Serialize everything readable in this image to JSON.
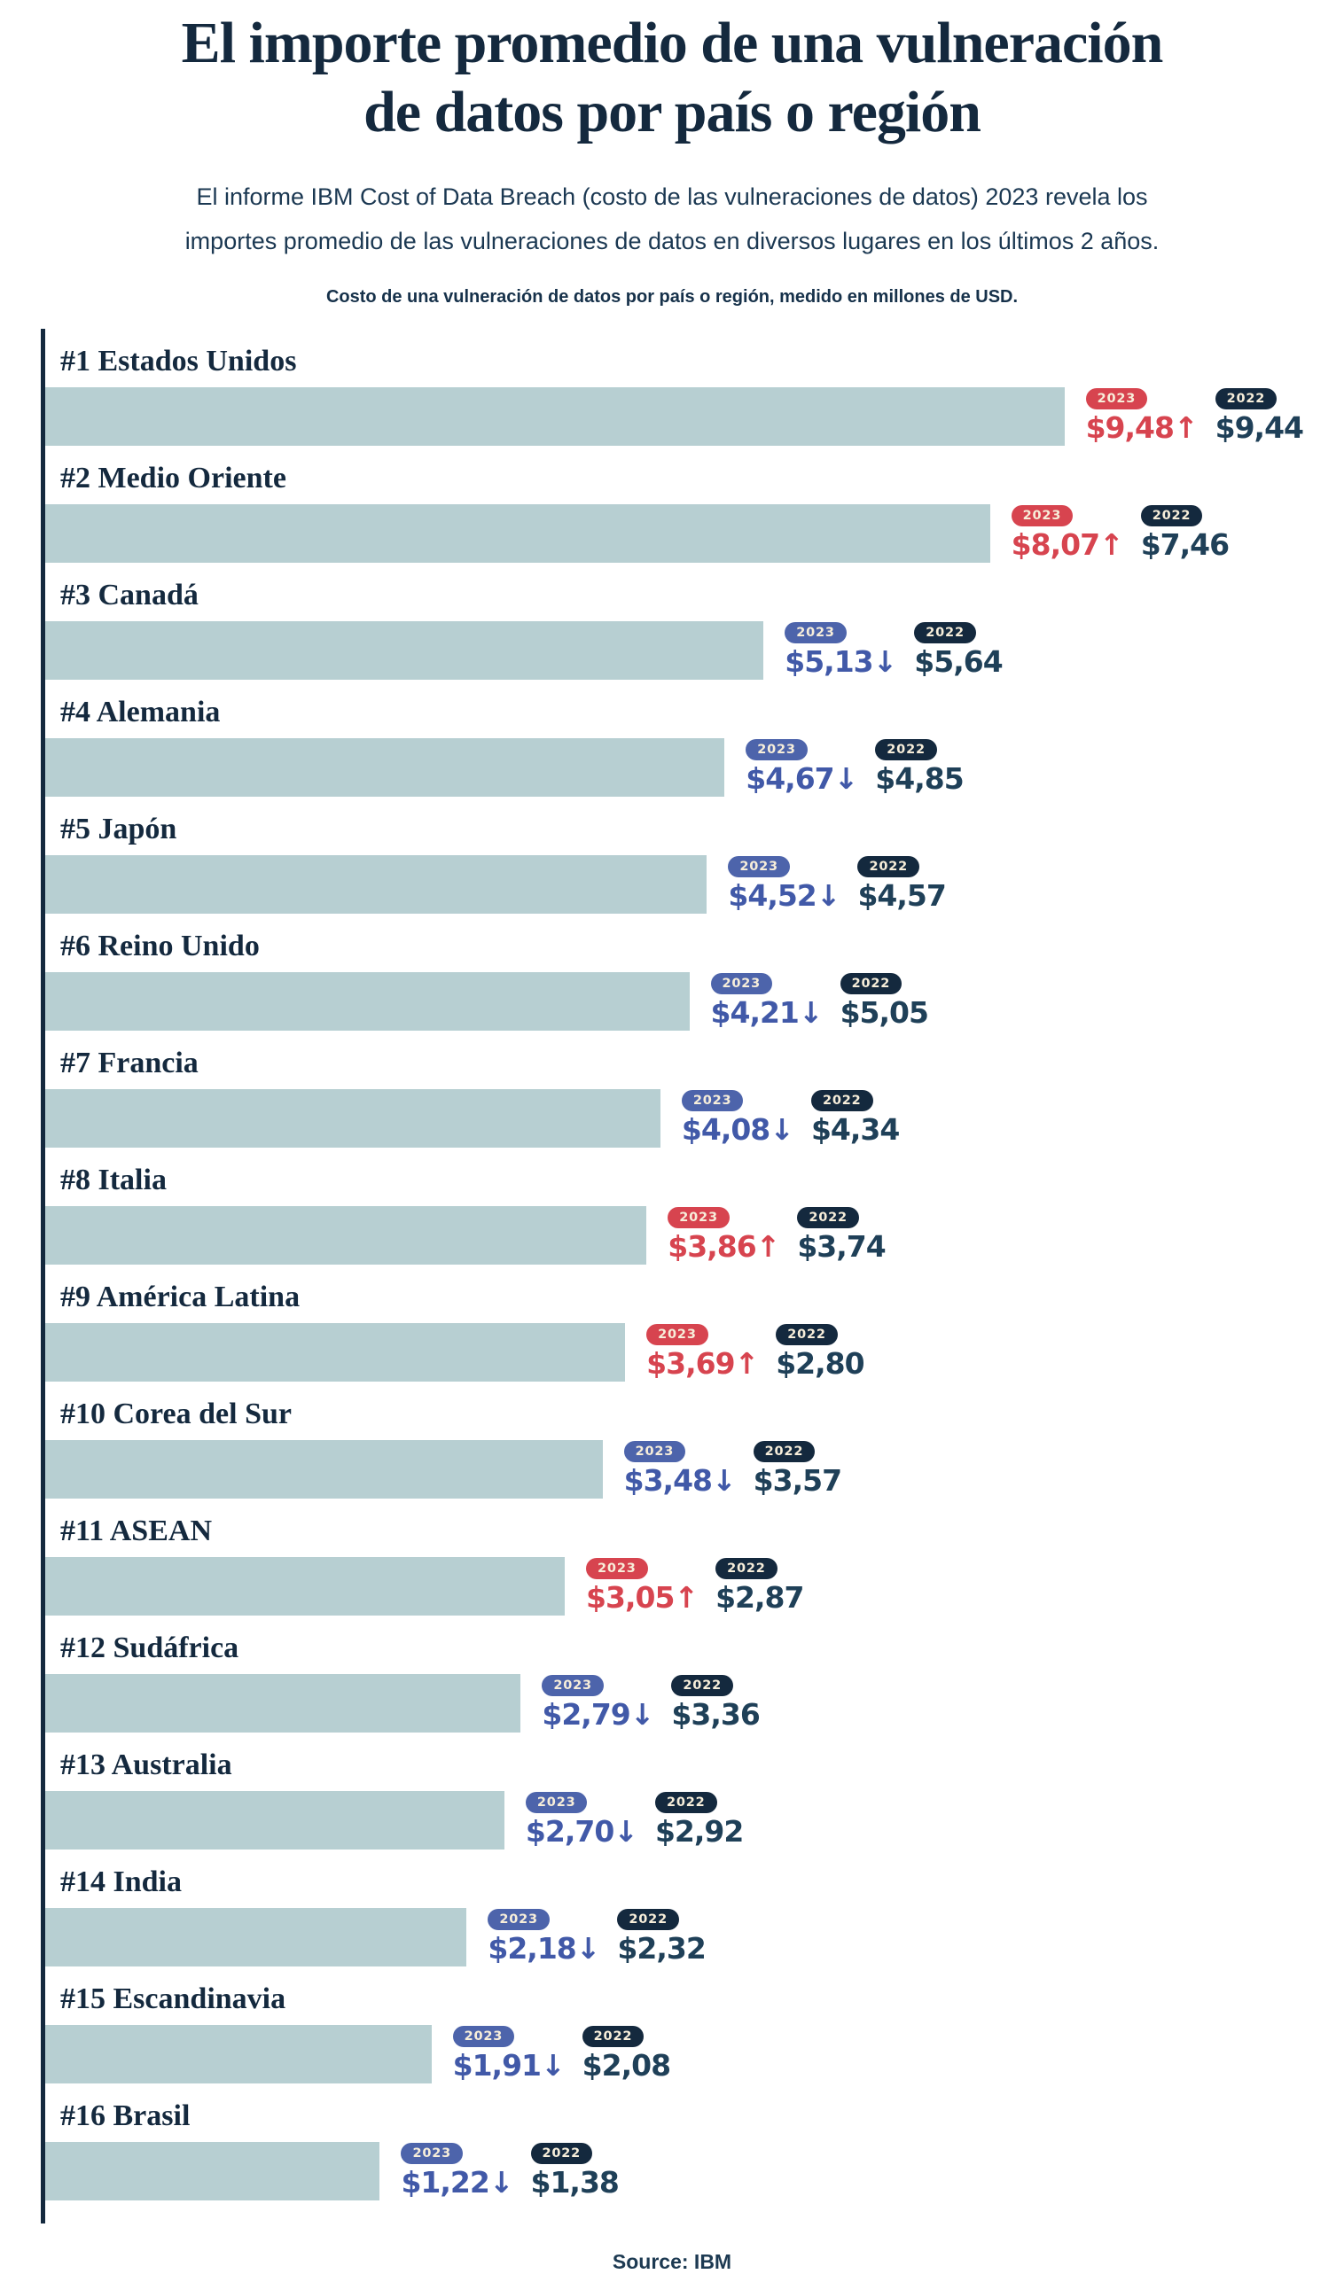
{
  "page": {
    "title_line1": "El importe promedio de una vulneración",
    "title_line2": "de datos por país o región",
    "subtitle_line1": "El informe IBM Cost of Data Breach (costo de las vulneraciones de datos) 2023 revela los",
    "subtitle_line2": "importes promedio de las vulneraciones de datos en diversos lugares en los últimos 2 años.",
    "caption": "Costo de una vulneración de datos por país o región, medido en millones de USD.",
    "source": "Source: IBM"
  },
  "colors": {
    "background": "#ffffff",
    "navy": "#14293e",
    "navy_value": "#1f4058",
    "red_accent": "#d7444f",
    "blue_accent": "#4d64ab",
    "bar_fill": "#b7cfd2",
    "badge_text": "#f7eeda"
  },
  "chart_data": {
    "type": "bar",
    "orientation": "horizontal",
    "title": "Costo de una vulneración de datos por país o región",
    "unit": "millones de USD",
    "legend": [
      "2023",
      "2022"
    ],
    "legend_position": "right-of-bars",
    "grid": false,
    "axis": "single vertical baseline at left",
    "rows": [
      {
        "rank": 1,
        "label": "#1 Estados Unidos",
        "value_2023": "$9,48",
        "value_2022": "$9,44",
        "numeric_2023": 9.48,
        "numeric_2022": 9.44,
        "trend": "up",
        "bar_pct": 85.1
      },
      {
        "rank": 2,
        "label": "#2 Medio Oriente",
        "value_2023": "$8,07",
        "value_2022": "$7,46",
        "numeric_2023": 8.07,
        "numeric_2022": 7.46,
        "trend": "up",
        "bar_pct": 75.1
      },
      {
        "rank": 3,
        "label": "#3 Canadá",
        "value_2023": "$5,13",
        "value_2022": "$5,64",
        "numeric_2023": 5.13,
        "numeric_2022": 5.64,
        "trend": "down",
        "bar_pct": 57.1
      },
      {
        "rank": 4,
        "label": "#4 Alemania",
        "value_2023": "$4,67",
        "value_2022": "$4,85",
        "numeric_2023": 4.67,
        "numeric_2022": 4.85,
        "trend": "down",
        "bar_pct": 54.0
      },
      {
        "rank": 5,
        "label": "#5 Japón",
        "value_2023": "$4,52",
        "value_2022": "$4,57",
        "numeric_2023": 4.52,
        "numeric_2022": 4.57,
        "trend": "down",
        "bar_pct": 52.6
      },
      {
        "rank": 6,
        "label": "#6 Reino Unido",
        "value_2023": "$4,21",
        "value_2022": "$5,05",
        "numeric_2023": 4.21,
        "numeric_2022": 5.05,
        "trend": "down",
        "bar_pct": 51.2
      },
      {
        "rank": 7,
        "label": "#7 Francia",
        "value_2023": "$4,08",
        "value_2022": "$4,34",
        "numeric_2023": 4.08,
        "numeric_2022": 4.34,
        "trend": "down",
        "bar_pct": 48.9
      },
      {
        "rank": 8,
        "label": "#8 Italia",
        "value_2023": "$3,86",
        "value_2022": "$3,74",
        "numeric_2023": 3.86,
        "numeric_2022": 3.74,
        "trend": "up",
        "bar_pct": 47.8
      },
      {
        "rank": 9,
        "label": "#9 América Latina",
        "value_2023": "$3,69",
        "value_2022": "$2,80",
        "numeric_2023": 3.69,
        "numeric_2022": 2.8,
        "trend": "up",
        "bar_pct": 46.1
      },
      {
        "rank": 10,
        "label": "#10 Corea del Sur",
        "value_2023": "$3,48",
        "value_2022": "$3,57",
        "numeric_2023": 3.48,
        "numeric_2022": 3.57,
        "trend": "down",
        "bar_pct": 44.3
      },
      {
        "rank": 11,
        "label": "#11 ASEAN",
        "value_2023": "$3,05",
        "value_2022": "$2,87",
        "numeric_2023": 3.05,
        "numeric_2022": 2.87,
        "trend": "up",
        "bar_pct": 41.3
      },
      {
        "rank": 12,
        "label": "#12 Sudáfrica",
        "value_2023": "$2,79",
        "value_2022": "$3,36",
        "numeric_2023": 2.79,
        "numeric_2022": 3.36,
        "trend": "down",
        "bar_pct": 37.8
      },
      {
        "rank": 13,
        "label": "#13 Australia",
        "value_2023": "$2,70",
        "value_2022": "$2,92",
        "numeric_2023": 2.7,
        "numeric_2022": 2.92,
        "trend": "down",
        "bar_pct": 36.5
      },
      {
        "rank": 14,
        "label": "#14 India",
        "value_2023": "$2,18",
        "value_2022": "$2,32",
        "numeric_2023": 2.18,
        "numeric_2022": 2.32,
        "trend": "down",
        "bar_pct": 33.5
      },
      {
        "rank": 15,
        "label": "#15 Escandinavia",
        "value_2023": "$1,91",
        "value_2022": "$2,08",
        "numeric_2023": 1.91,
        "numeric_2022": 2.08,
        "trend": "down",
        "bar_pct": 30.7
      },
      {
        "rank": 16,
        "label": "#16 Brasil",
        "value_2023": "$1,22",
        "value_2022": "$1,38",
        "numeric_2023": 1.22,
        "numeric_2022": 1.38,
        "trend": "down",
        "bar_pct": 26.6
      }
    ]
  }
}
